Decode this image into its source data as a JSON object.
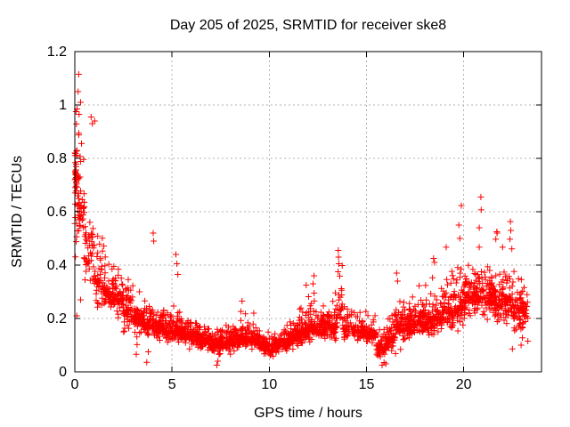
{
  "figure": {
    "title": "Day 205 of 2025, SRMTID for receiver ske8",
    "xlabel": "GPS time / hours",
    "ylabel": "SRMTID / TECUs"
  },
  "chart_data": {
    "type": "scatter",
    "title": "Day 205 of 2025, SRMTID for receiver ske8",
    "xlabel": "GPS time / hours",
    "ylabel": "SRMTID / TECUs",
    "xlim": [
      0,
      24
    ],
    "ylim": [
      0,
      1.2
    ],
    "xticks": [
      0,
      5,
      10,
      15,
      20
    ],
    "xtick_labels": [
      "0",
      "5",
      "10",
      "15",
      "20"
    ],
    "yticks": [
      0,
      0.2,
      0.4,
      0.6,
      0.8,
      1,
      1.2
    ],
    "ytick_labels": [
      "0",
      "0.2",
      "0.4",
      "0.6",
      "0.8",
      "1",
      "1.2"
    ],
    "grid": {
      "visible": true,
      "color": "#b3b3b3",
      "dash": [
        2,
        3
      ]
    },
    "frame_color": "#000000",
    "marker": {
      "shape": "plus",
      "color": "#ff0000",
      "size": 7
    },
    "series_name": "SRMTID",
    "data_x_span": [
      0,
      23.3
    ],
    "description": "Dense scatter of ionospheric SRMTID values vs GPS time; high variance near 0h (up to 1.12 TECUs), quiet midday minimum near 7-11h (~0.1 TECUs), rising again after 16h toward ~0.3-0.65 at 20-23h.",
    "density_segments": [
      [
        0.0,
        0.12,
        40,
        0.28,
        0.72,
        1.0
      ],
      [
        0.12,
        0.5,
        45,
        0.22,
        0.62,
        1.0
      ],
      [
        0.5,
        1.0,
        42,
        0.2,
        0.45,
        0.8
      ],
      [
        1.0,
        1.5,
        48,
        0.17,
        0.34,
        0.62
      ],
      [
        1.5,
        2.0,
        55,
        0.15,
        0.3,
        0.5
      ],
      [
        2.0,
        2.5,
        60,
        0.12,
        0.27,
        0.47
      ],
      [
        2.5,
        3.0,
        60,
        0.1,
        0.23,
        0.43
      ],
      [
        3.0,
        3.5,
        62,
        0.08,
        0.2,
        0.38
      ],
      [
        3.5,
        4.0,
        62,
        0.05,
        0.18,
        0.34
      ],
      [
        4.0,
        4.5,
        65,
        0.09,
        0.17,
        0.31
      ],
      [
        4.5,
        5.0,
        65,
        0.08,
        0.16,
        0.29
      ],
      [
        5.0,
        5.5,
        65,
        0.08,
        0.15,
        0.3
      ],
      [
        5.5,
        6.0,
        65,
        0.07,
        0.14,
        0.26
      ],
      [
        6.0,
        6.5,
        65,
        0.06,
        0.13,
        0.23
      ],
      [
        6.5,
        7.0,
        65,
        0.05,
        0.12,
        0.22
      ],
      [
        7.0,
        7.5,
        65,
        0.02,
        0.1,
        0.2
      ],
      [
        7.5,
        8.0,
        65,
        0.04,
        0.11,
        0.22
      ],
      [
        8.0,
        8.5,
        65,
        0.05,
        0.12,
        0.24
      ],
      [
        8.5,
        9.0,
        65,
        0.05,
        0.13,
        0.27
      ],
      [
        9.0,
        9.5,
        65,
        0.05,
        0.12,
        0.22
      ],
      [
        9.5,
        10.0,
        65,
        0.04,
        0.1,
        0.18
      ],
      [
        10.0,
        10.5,
        65,
        0.04,
        0.1,
        0.18
      ],
      [
        10.5,
        11.0,
        65,
        0.05,
        0.11,
        0.21
      ],
      [
        11.0,
        11.5,
        65,
        0.06,
        0.13,
        0.26
      ],
      [
        11.5,
        12.0,
        65,
        0.07,
        0.15,
        0.33
      ],
      [
        12.0,
        12.5,
        65,
        0.08,
        0.17,
        0.37
      ],
      [
        12.5,
        13.0,
        65,
        0.08,
        0.16,
        0.3
      ],
      [
        13.0,
        13.5,
        62,
        0.09,
        0.17,
        0.33
      ],
      [
        13.5,
        13.8,
        22,
        0.12,
        0.24,
        0.44
      ],
      [
        13.8,
        14.5,
        58,
        0.08,
        0.16,
        0.33
      ],
      [
        14.5,
        15.0,
        58,
        0.08,
        0.15,
        0.28
      ],
      [
        15.0,
        15.5,
        58,
        0.06,
        0.14,
        0.26
      ],
      [
        15.5,
        16.0,
        58,
        0.02,
        0.09,
        0.2
      ],
      [
        16.0,
        16.5,
        60,
        0.03,
        0.13,
        0.33
      ],
      [
        16.5,
        17.0,
        60,
        0.07,
        0.16,
        0.37
      ],
      [
        17.0,
        17.5,
        60,
        0.08,
        0.17,
        0.35
      ],
      [
        17.5,
        18.0,
        60,
        0.08,
        0.18,
        0.4
      ],
      [
        18.0,
        18.5,
        60,
        0.09,
        0.19,
        0.43
      ],
      [
        18.5,
        19.0,
        60,
        0.1,
        0.2,
        0.4
      ],
      [
        19.0,
        19.5,
        60,
        0.1,
        0.22,
        0.47
      ],
      [
        19.5,
        20.0,
        60,
        0.12,
        0.24,
        0.55
      ],
      [
        20.0,
        20.5,
        62,
        0.14,
        0.27,
        0.5
      ],
      [
        20.5,
        21.0,
        62,
        0.15,
        0.28,
        0.5
      ],
      [
        21.0,
        21.5,
        62,
        0.15,
        0.28,
        0.47
      ],
      [
        21.5,
        22.0,
        58,
        0.13,
        0.26,
        0.45
      ],
      [
        22.0,
        22.5,
        58,
        0.12,
        0.27,
        0.5
      ],
      [
        22.5,
        23.0,
        58,
        0.08,
        0.24,
        0.48
      ],
      [
        23.0,
        23.3,
        32,
        0.1,
        0.22,
        0.4
      ]
    ],
    "outlier_points": [
      [
        0.2,
        1.115
      ],
      [
        0.17,
        1.05
      ],
      [
        0.3,
        1.01
      ],
      [
        0.06,
        0.975
      ],
      [
        0.12,
        0.985
      ],
      [
        0.22,
        0.965
      ],
      [
        0.84,
        0.955
      ],
      [
        0.9,
        0.93
      ],
      [
        1.02,
        0.94
      ],
      [
        0.1,
        0.21
      ],
      [
        0.3,
        0.27
      ],
      [
        3.16,
        0.066
      ],
      [
        3.7,
        0.036
      ],
      [
        3.78,
        0.075
      ],
      [
        4.03,
        0.52
      ],
      [
        4.06,
        0.49
      ],
      [
        5.2,
        0.44
      ],
      [
        5.25,
        0.405
      ],
      [
        5.3,
        0.365
      ],
      [
        7.3,
        0.025
      ],
      [
        7.36,
        0.04
      ],
      [
        8.6,
        0.265
      ],
      [
        9.2,
        0.22
      ],
      [
        11.9,
        0.325
      ],
      [
        12.25,
        0.33
      ],
      [
        12.3,
        0.36
      ],
      [
        13.55,
        0.455
      ],
      [
        13.56,
        0.43
      ],
      [
        13.58,
        0.405
      ],
      [
        13.54,
        0.375
      ],
      [
        15.8,
        0.025
      ],
      [
        15.9,
        0.035
      ],
      [
        16.0,
        0.03
      ],
      [
        16.55,
        0.37
      ],
      [
        16.6,
        0.34
      ],
      [
        18.45,
        0.425
      ],
      [
        18.5,
        0.41
      ],
      [
        19.1,
        0.467
      ],
      [
        19.75,
        0.55
      ],
      [
        19.88,
        0.623
      ],
      [
        19.8,
        0.5
      ],
      [
        20.8,
        0.54
      ],
      [
        20.88,
        0.655
      ],
      [
        20.9,
        0.607
      ],
      [
        20.8,
        0.467
      ],
      [
        21.65,
        0.497
      ],
      [
        21.7,
        0.525
      ],
      [
        21.72,
        0.52
      ],
      [
        22.0,
        0.467
      ],
      [
        22.38,
        0.497
      ],
      [
        22.4,
        0.563
      ],
      [
        22.42,
        0.53
      ],
      [
        22.5,
        0.086
      ],
      [
        22.95,
        0.1
      ],
      [
        23.3,
        0.115
      ]
    ],
    "seed": 205
  }
}
